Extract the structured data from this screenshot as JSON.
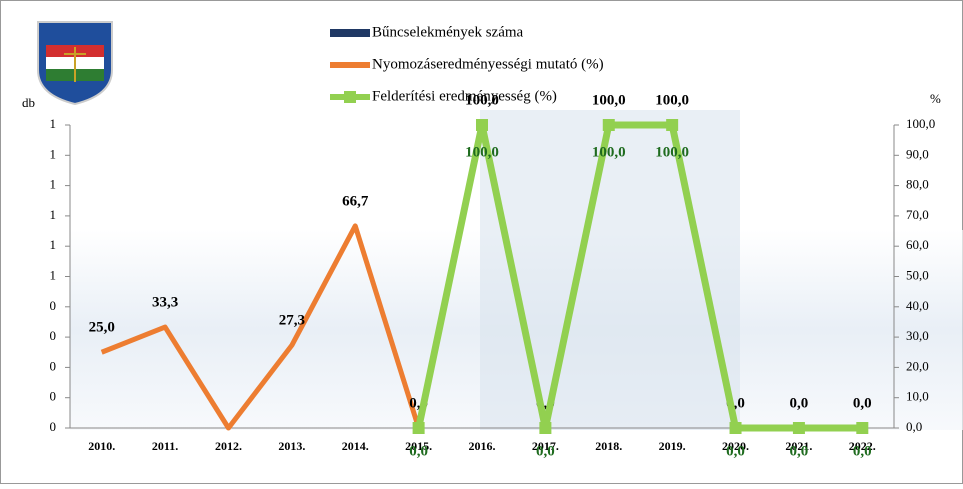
{
  "chart_data": {
    "type": "bar-line",
    "y_label": "db",
    "y2_label": "%",
    "categories": [
      "2010.",
      "2011.",
      "2012.",
      "2013.",
      "2014.",
      "2015.",
      "2016.",
      "2017.",
      "2018.",
      "2019.",
      "2020.",
      "2021.",
      "2022."
    ],
    "ylim": [
      0,
      1
    ],
    "yticks": [
      {
        "value": 0,
        "label": "0"
      },
      {
        "value": 0.1,
        "label": "0"
      },
      {
        "value": 0.2,
        "label": "0"
      },
      {
        "value": 0.3,
        "label": "0"
      },
      {
        "value": 0.4,
        "label": "0"
      },
      {
        "value": 0.5,
        "label": "1"
      },
      {
        "value": 0.6,
        "label": "1"
      },
      {
        "value": 0.7,
        "label": "1"
      },
      {
        "value": 0.8,
        "label": "1"
      },
      {
        "value": 0.9,
        "label": "1"
      },
      {
        "value": 1,
        "label": "1"
      }
    ],
    "y2lim": [
      0,
      100
    ],
    "y2ticks": [
      {
        "value": 0,
        "label": "0,0"
      },
      {
        "value": 10,
        "label": "10,0"
      },
      {
        "value": 20,
        "label": "20,0"
      },
      {
        "value": 30,
        "label": "30,0"
      },
      {
        "value": 40,
        "label": "40,0"
      },
      {
        "value": 50,
        "label": "50,0"
      },
      {
        "value": 60,
        "label": "60,0"
      },
      {
        "value": 70,
        "label": "70,0"
      },
      {
        "value": 80,
        "label": "80,0"
      },
      {
        "value": 90,
        "label": "90,0"
      },
      {
        "value": 100,
        "label": "100,0"
      }
    ],
    "series": [
      {
        "name": "Bűncselekmények száma",
        "type": "bar",
        "color": "#1f3864",
        "axis": "y",
        "values": [
          0,
          0,
          0,
          0,
          0,
          0,
          0,
          0,
          0,
          0,
          0,
          0,
          0
        ]
      },
      {
        "name": "Nyomozáseredményességi mutató (%)",
        "type": "line",
        "color": "#ed7d31",
        "axis": "y2",
        "label_color": "#000000",
        "values": [
          25,
          33.3,
          0,
          27.3,
          66.7,
          0,
          100,
          0,
          100,
          100,
          0,
          0,
          0
        ],
        "value_labels": [
          "25,0",
          "33,3",
          null,
          "27,3",
          "66,7",
          "0,0",
          "100,0",
          "0,0",
          "100,0",
          "100,0",
          "0,0",
          "0,0",
          "0,0"
        ]
      },
      {
        "name": "Felderítési eredményesség (%)",
        "type": "line",
        "color": "#92d050",
        "axis": "y2",
        "label_color": "#1e6b1e",
        "values": [
          null,
          null,
          null,
          null,
          null,
          0,
          100,
          0,
          100,
          100,
          0,
          0,
          0
        ],
        "value_labels": [
          null,
          null,
          null,
          null,
          null,
          "0,0",
          "100,0",
          "0,0",
          "100,0",
          "100,0",
          "0,0",
          "0,0",
          "0,0"
        ]
      }
    ]
  }
}
